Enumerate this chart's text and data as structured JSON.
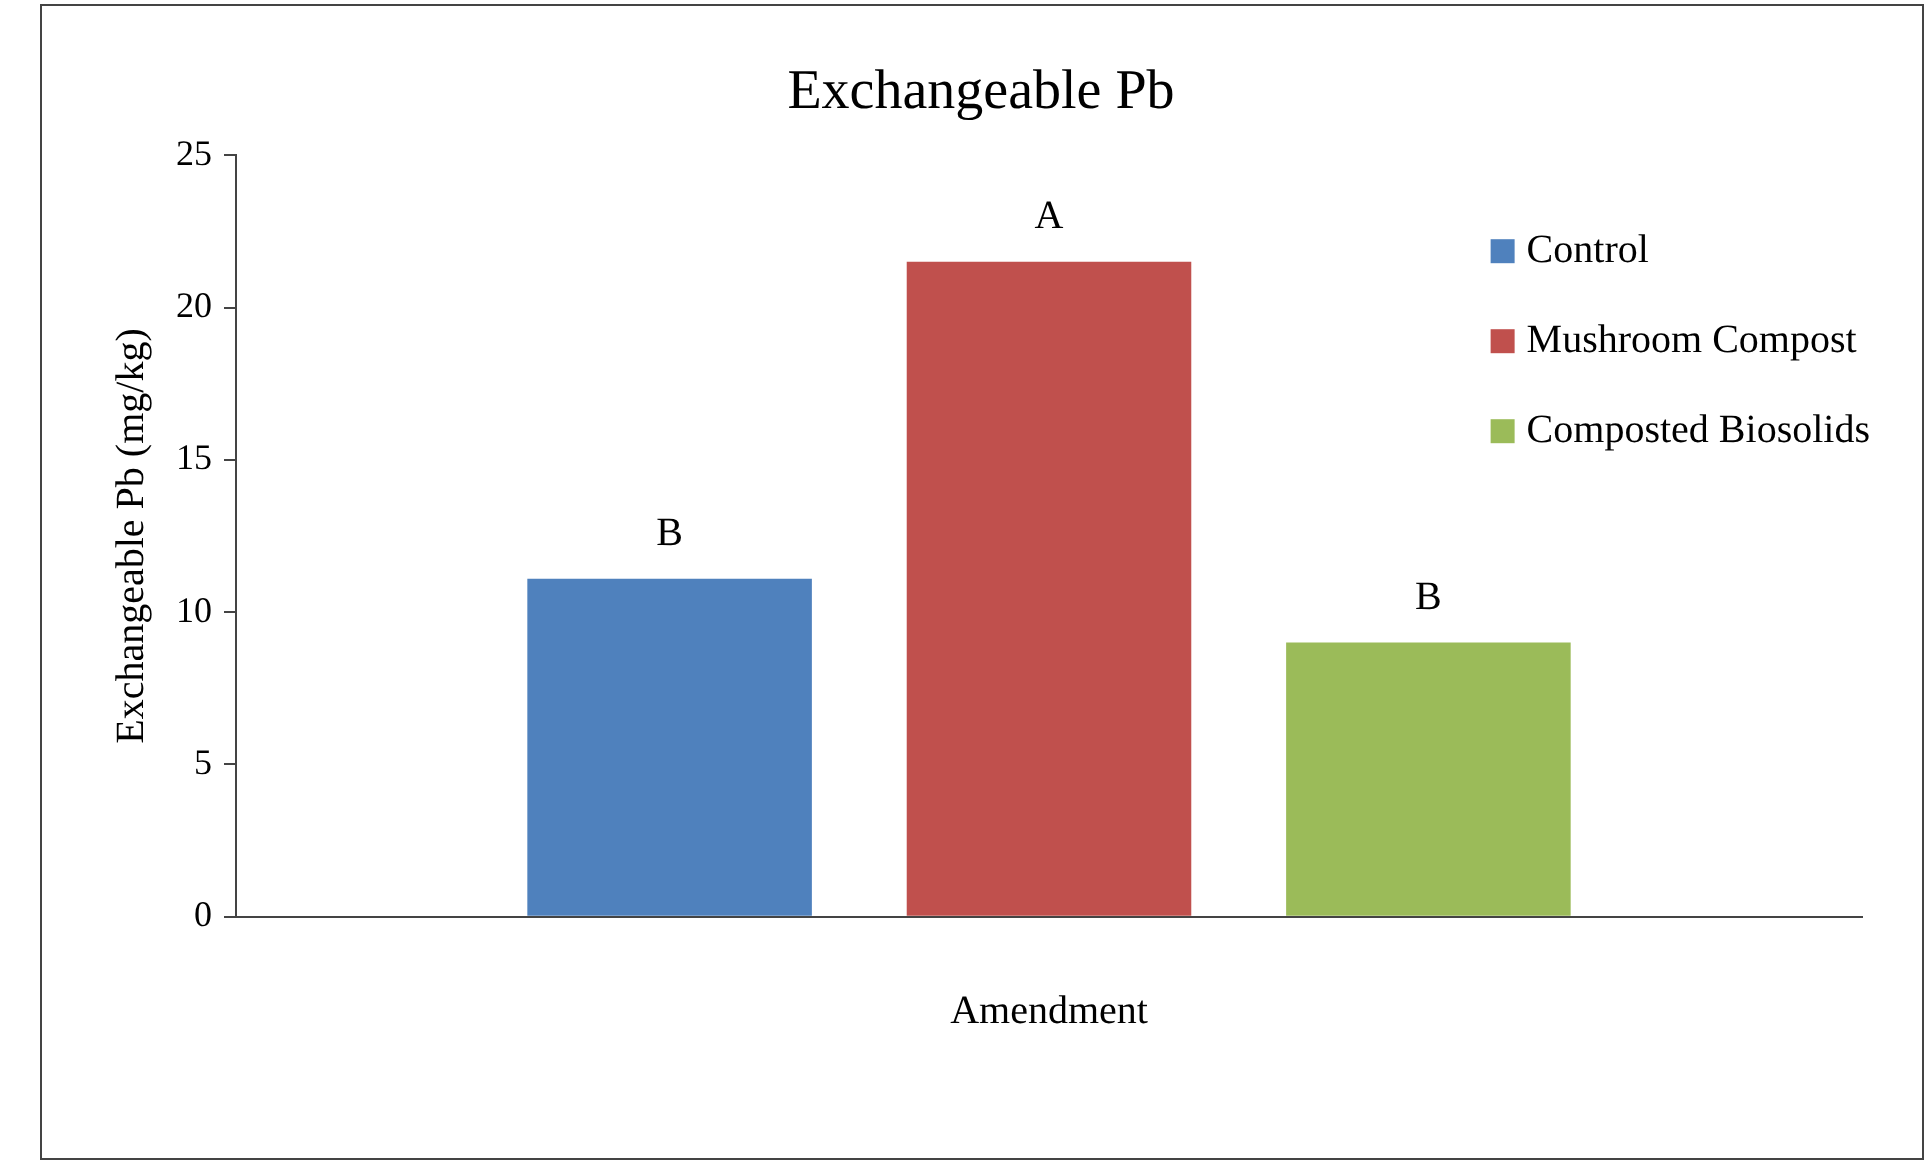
{
  "chart_data": {
    "type": "bar",
    "title": "Exchangeable Pb",
    "xlabel": "Amendment",
    "ylabel": "Exchangeable Pb (mg/kg)",
    "categories": [
      null
    ],
    "series": [
      {
        "name": "Control",
        "color": "#4f81bd",
        "values": [
          11.1
        ],
        "value_labels": [
          "B"
        ]
      },
      {
        "name": "Mushroom Compost",
        "color": "#c0504d",
        "values": [
          21.5
        ],
        "value_labels": [
          "A"
        ]
      },
      {
        "name": "Composted Biosolids",
        "color": "#9bbb59",
        "values": [
          9.0
        ],
        "value_labels": [
          "B"
        ]
      }
    ],
    "ylim": [
      0,
      25
    ],
    "yticks": [
      0,
      5,
      10,
      15,
      20,
      25
    ],
    "grid": false,
    "legend": "top right"
  }
}
